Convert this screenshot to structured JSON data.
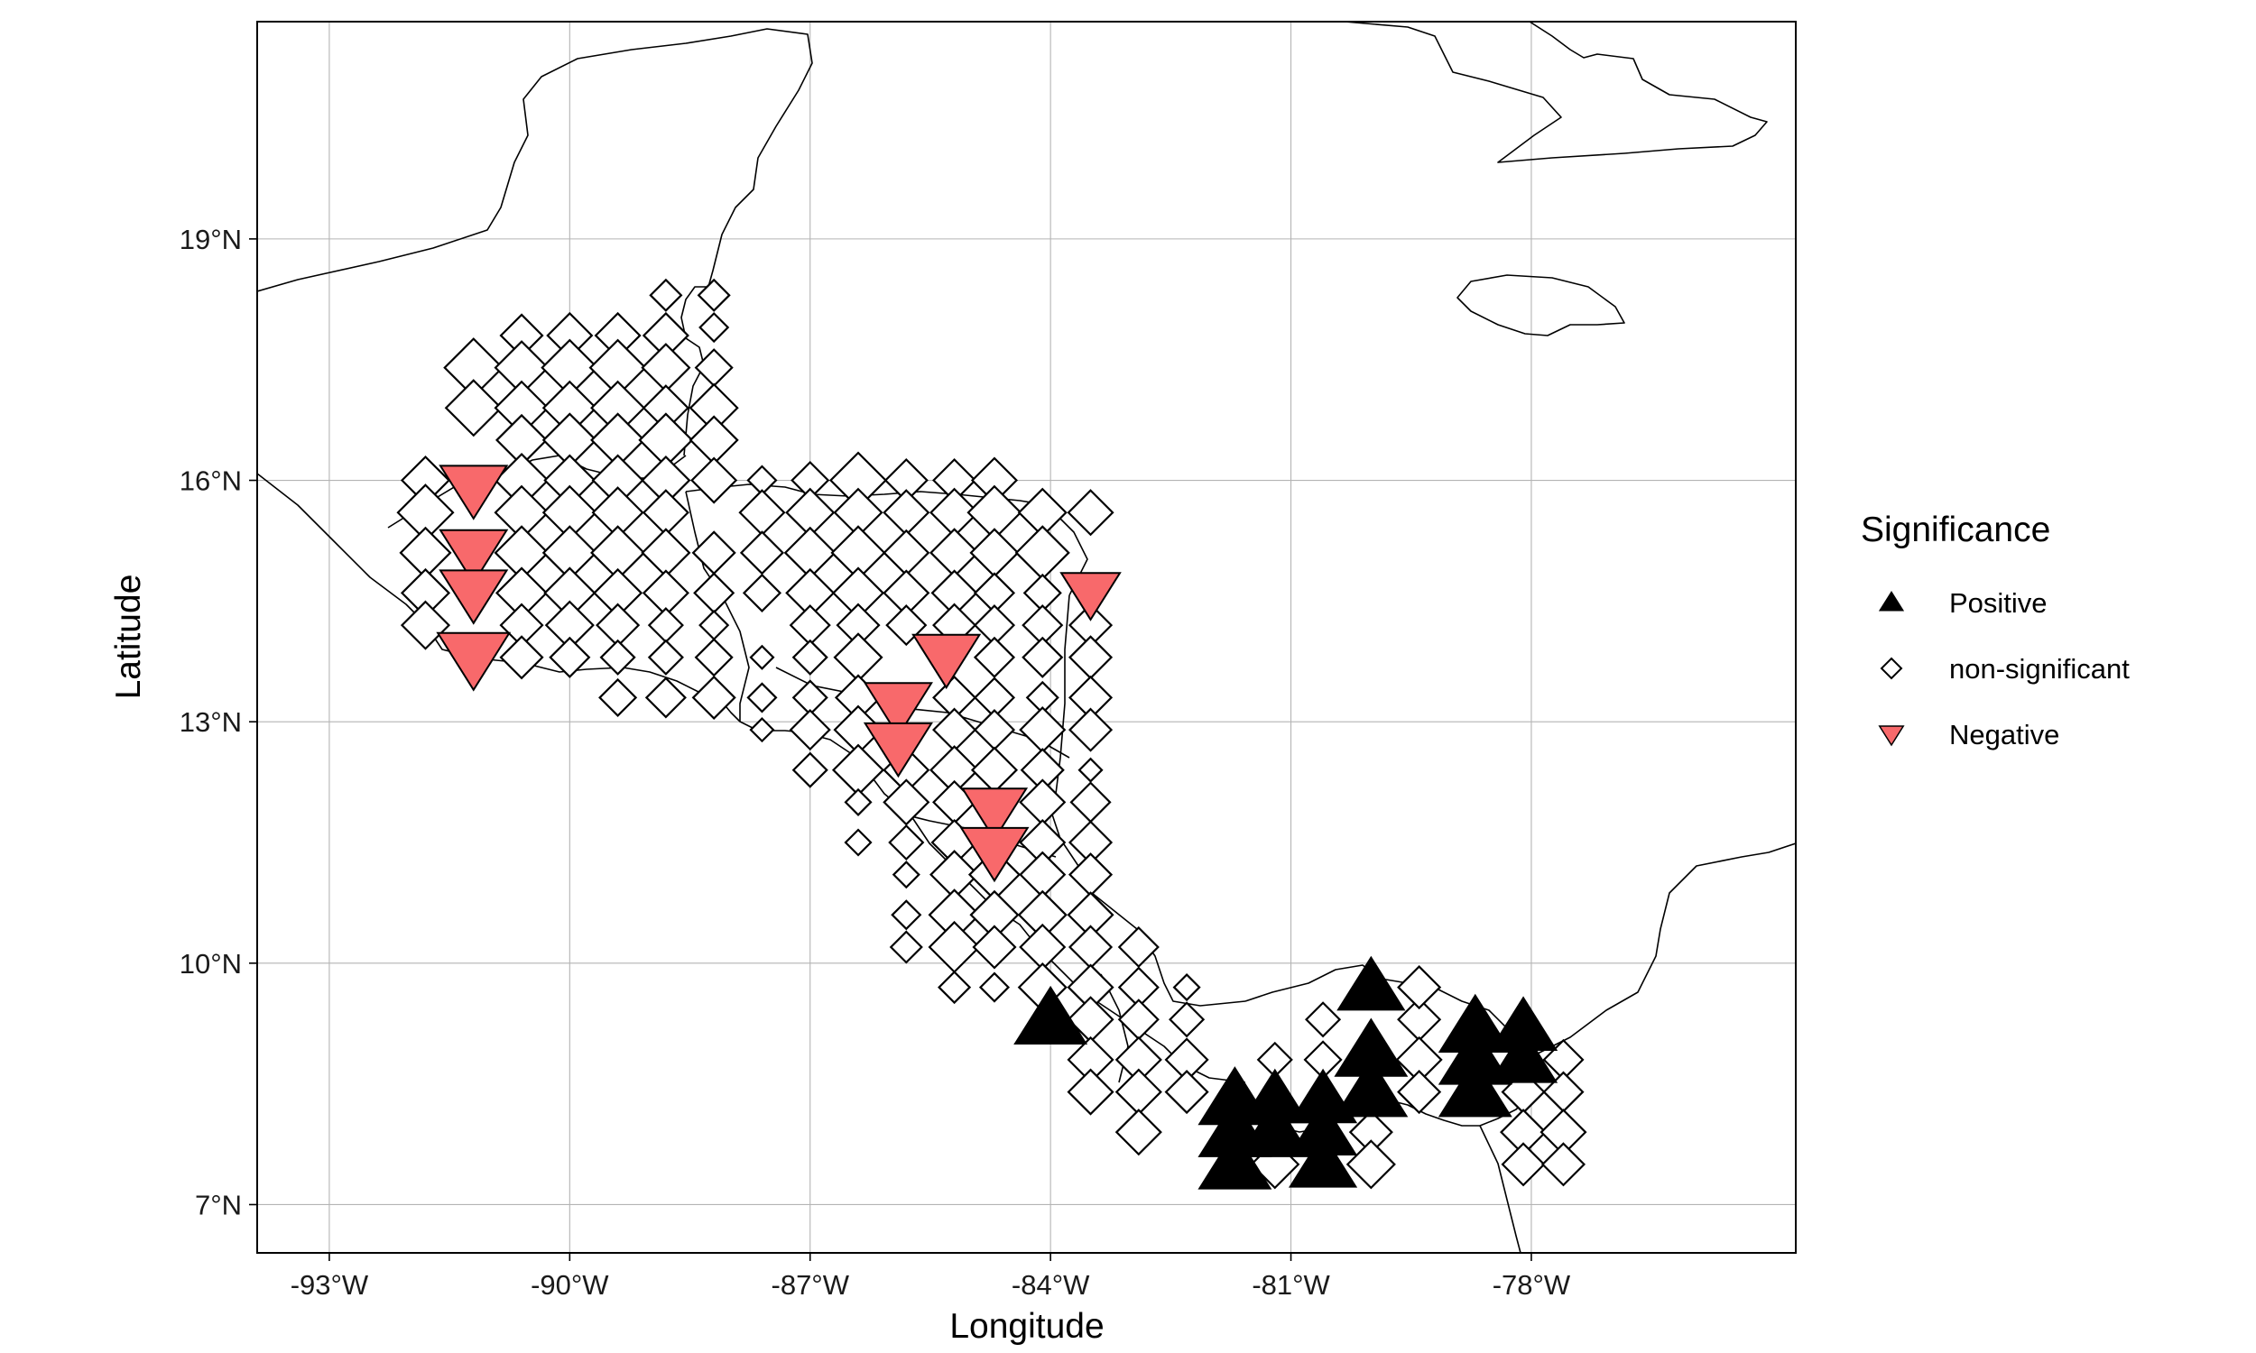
{
  "chart_data": {
    "type": "scatter",
    "title": "",
    "xlabel": "Longitude",
    "ylabel": "Latitude",
    "xlim": [
      -93.9,
      -74.7
    ],
    "ylim": [
      6.4,
      21.7
    ],
    "x_ticks": [
      -93,
      -90,
      -87,
      -84,
      -81,
      -78
    ],
    "x_tick_labels": [
      "-93°W",
      "-90°W",
      "-87°W",
      "-84°W",
      "-81°W",
      "-78°W"
    ],
    "y_ticks": [
      7,
      10,
      13,
      16,
      19
    ],
    "y_tick_labels": [
      "7°N",
      "10°N",
      "13°N",
      "16°N",
      "19°N"
    ],
    "grid": true,
    "legend": {
      "title": "Significance",
      "position": "right",
      "entries": [
        {
          "key": "positive",
          "label": "Positive",
          "shape": "triangle-up",
          "color": "#000000"
        },
        {
          "key": "ns",
          "label": "non-significant",
          "shape": "diamond-open",
          "color": "#000000"
        },
        {
          "key": "negative",
          "label": "Negative",
          "shape": "triangle-down",
          "color": "#F8696B"
        }
      ]
    },
    "colors": {
      "positive": "#000000",
      "negative": "#F8696B",
      "ns_stroke": "#000000"
    },
    "series": [
      {
        "key": "positive",
        "points": [
          [
            -84.0,
            9.3,
            1.0
          ],
          [
            -80.0,
            9.7,
            0.9
          ],
          [
            -80.0,
            8.9,
            1.0
          ],
          [
            -80.0,
            8.4,
            1.0
          ],
          [
            -81.7,
            8.3,
            1.0
          ],
          [
            -81.2,
            8.3,
            0.9
          ],
          [
            -80.6,
            8.3,
            0.9
          ],
          [
            -81.7,
            7.9,
            1.0
          ],
          [
            -81.2,
            7.9,
            1.0
          ],
          [
            -80.6,
            7.9,
            0.9
          ],
          [
            -81.7,
            7.5,
            1.0
          ],
          [
            -80.6,
            7.5,
            0.9
          ],
          [
            -78.7,
            9.2,
            1.0
          ],
          [
            -78.1,
            9.2,
            0.9
          ],
          [
            -78.7,
            8.8,
            1.0
          ],
          [
            -78.1,
            8.8,
            0.9
          ],
          [
            -78.7,
            8.4,
            1.0
          ]
        ]
      },
      {
        "key": "negative",
        "points": [
          [
            -91.2,
            15.9,
            0.9
          ],
          [
            -91.2,
            15.1,
            0.9
          ],
          [
            -91.2,
            14.6,
            0.9
          ],
          [
            -91.2,
            13.8,
            1.0
          ],
          [
            -85.3,
            13.8,
            0.9
          ],
          [
            -85.9,
            13.2,
            0.9
          ],
          [
            -85.9,
            12.7,
            0.9
          ],
          [
            -84.7,
            11.9,
            0.85
          ],
          [
            -84.7,
            11.4,
            0.9
          ],
          [
            -83.5,
            14.6,
            0.75
          ]
        ]
      },
      {
        "key": "ns",
        "points": [
          [
            -88.8,
            18.3,
            0.3
          ],
          [
            -88.2,
            18.3,
            0.3
          ],
          [
            -88.2,
            17.9,
            0.25
          ],
          [
            -90.6,
            17.8,
            0.5
          ],
          [
            -90.0,
            17.8,
            0.55
          ],
          [
            -89.4,
            17.8,
            0.55
          ],
          [
            -88.8,
            17.8,
            0.55
          ],
          [
            -91.2,
            17.4,
            0.8
          ],
          [
            -90.6,
            17.4,
            0.7
          ],
          [
            -90.0,
            17.4,
            0.75
          ],
          [
            -89.4,
            17.4,
            0.75
          ],
          [
            -88.8,
            17.4,
            0.6
          ],
          [
            -88.2,
            17.4,
            0.4
          ],
          [
            -91.2,
            16.9,
            0.75
          ],
          [
            -90.6,
            16.9,
            0.7
          ],
          [
            -90.0,
            16.9,
            0.7
          ],
          [
            -89.4,
            16.9,
            0.7
          ],
          [
            -88.8,
            16.9,
            0.55
          ],
          [
            -88.2,
            16.9,
            0.6
          ],
          [
            -90.6,
            16.5,
            0.65
          ],
          [
            -90.0,
            16.5,
            0.7
          ],
          [
            -89.4,
            16.5,
            0.7
          ],
          [
            -88.8,
            16.5,
            0.7
          ],
          [
            -88.2,
            16.5,
            0.6
          ],
          [
            -91.8,
            16.0,
            0.6
          ],
          [
            -90.6,
            16.0,
            0.7
          ],
          [
            -90.0,
            16.0,
            0.65
          ],
          [
            -89.4,
            16.0,
            0.65
          ],
          [
            -88.8,
            16.0,
            0.6
          ],
          [
            -88.2,
            16.0,
            0.55
          ],
          [
            -87.6,
            16.0,
            0.25
          ],
          [
            -87.0,
            16.0,
            0.4
          ],
          [
            -86.4,
            16.0,
            0.75
          ],
          [
            -85.8,
            16.0,
            0.5
          ],
          [
            -85.2,
            16.0,
            0.5
          ],
          [
            -84.7,
            16.0,
            0.55
          ],
          [
            -91.8,
            15.6,
            0.75
          ],
          [
            -90.6,
            15.6,
            0.7
          ],
          [
            -90.0,
            15.6,
            0.7
          ],
          [
            -89.4,
            15.6,
            0.65
          ],
          [
            -88.8,
            15.6,
            0.55
          ],
          [
            -87.6,
            15.6,
            0.55
          ],
          [
            -87.0,
            15.6,
            0.6
          ],
          [
            -86.4,
            15.6,
            0.6
          ],
          [
            -85.8,
            15.6,
            0.55
          ],
          [
            -85.2,
            15.6,
            0.6
          ],
          [
            -84.7,
            15.6,
            0.7
          ],
          [
            -84.1,
            15.6,
            0.6
          ],
          [
            -83.5,
            15.6,
            0.55
          ],
          [
            -91.8,
            15.1,
            0.65
          ],
          [
            -90.6,
            15.1,
            0.7
          ],
          [
            -90.0,
            15.1,
            0.7
          ],
          [
            -89.4,
            15.1,
            0.7
          ],
          [
            -88.8,
            15.1,
            0.6
          ],
          [
            -88.2,
            15.1,
            0.5
          ],
          [
            -87.6,
            15.1,
            0.5
          ],
          [
            -87.0,
            15.1,
            0.65
          ],
          [
            -86.4,
            15.1,
            0.7
          ],
          [
            -85.8,
            15.1,
            0.55
          ],
          [
            -85.2,
            15.1,
            0.6
          ],
          [
            -84.7,
            15.1,
            0.6
          ],
          [
            -84.1,
            15.1,
            0.7
          ],
          [
            -91.8,
            14.6,
            0.6
          ],
          [
            -90.6,
            14.6,
            0.65
          ],
          [
            -90.0,
            14.6,
            0.65
          ],
          [
            -89.4,
            14.6,
            0.6
          ],
          [
            -88.8,
            14.6,
            0.55
          ],
          [
            -88.2,
            14.6,
            0.45
          ],
          [
            -87.6,
            14.6,
            0.4
          ],
          [
            -87.0,
            14.6,
            0.6
          ],
          [
            -86.4,
            14.6,
            0.65
          ],
          [
            -85.8,
            14.6,
            0.55
          ],
          [
            -85.2,
            14.6,
            0.55
          ],
          [
            -84.7,
            14.6,
            0.45
          ],
          [
            -84.1,
            14.6,
            0.4
          ],
          [
            -91.8,
            14.2,
            0.6
          ],
          [
            -90.6,
            14.2,
            0.5
          ],
          [
            -90.0,
            14.2,
            0.6
          ],
          [
            -89.4,
            14.2,
            0.5
          ],
          [
            -88.8,
            14.2,
            0.35
          ],
          [
            -88.2,
            14.2,
            0.25
          ],
          [
            -87.0,
            14.2,
            0.45
          ],
          [
            -86.4,
            14.2,
            0.5
          ],
          [
            -85.8,
            14.2,
            0.45
          ],
          [
            -85.2,
            14.2,
            0.5
          ],
          [
            -84.7,
            14.2,
            0.45
          ],
          [
            -84.1,
            14.2,
            0.45
          ],
          [
            -83.5,
            14.2,
            0.5
          ],
          [
            -90.6,
            13.8,
            0.5
          ],
          [
            -90.0,
            13.8,
            0.45
          ],
          [
            -89.4,
            13.8,
            0.35
          ],
          [
            -88.8,
            13.8,
            0.35
          ],
          [
            -88.2,
            13.8,
            0.4
          ],
          [
            -87.6,
            13.8,
            0.15
          ],
          [
            -87.0,
            13.8,
            0.35
          ],
          [
            -86.4,
            13.8,
            0.6
          ],
          [
            -84.7,
            13.8,
            0.45
          ],
          [
            -84.1,
            13.8,
            0.45
          ],
          [
            -83.5,
            13.8,
            0.5
          ],
          [
            -89.4,
            13.3,
            0.4
          ],
          [
            -88.8,
            13.3,
            0.45
          ],
          [
            -88.2,
            13.3,
            0.5
          ],
          [
            -87.6,
            13.3,
            0.25
          ],
          [
            -87.0,
            13.3,
            0.35
          ],
          [
            -86.4,
            13.3,
            0.55
          ],
          [
            -85.2,
            13.3,
            0.5
          ],
          [
            -84.7,
            13.3,
            0.45
          ],
          [
            -84.1,
            13.3,
            0.3
          ],
          [
            -83.5,
            13.3,
            0.5
          ],
          [
            -87.6,
            12.9,
            0.15
          ],
          [
            -87.0,
            12.9,
            0.45
          ],
          [
            -86.4,
            12.9,
            0.6
          ],
          [
            -85.2,
            12.9,
            0.5
          ],
          [
            -84.7,
            12.9,
            0.45
          ],
          [
            -84.1,
            12.9,
            0.55
          ],
          [
            -83.5,
            12.9,
            0.5
          ],
          [
            -87.0,
            12.4,
            0.35
          ],
          [
            -86.4,
            12.4,
            0.65
          ],
          [
            -85.8,
            12.4,
            0.55
          ],
          [
            -85.2,
            12.4,
            0.6
          ],
          [
            -84.7,
            12.4,
            0.55
          ],
          [
            -84.1,
            12.4,
            0.5
          ],
          [
            -83.5,
            12.4,
            0.15
          ],
          [
            -86.4,
            12.0,
            0.2
          ],
          [
            -85.8,
            12.0,
            0.55
          ],
          [
            -85.2,
            12.0,
            0.5
          ],
          [
            -84.1,
            12.0,
            0.55
          ],
          [
            -83.5,
            12.0,
            0.45
          ],
          [
            -86.4,
            11.5,
            0.2
          ],
          [
            -85.8,
            11.5,
            0.35
          ],
          [
            -85.2,
            11.5,
            0.55
          ],
          [
            -84.1,
            11.5,
            0.55
          ],
          [
            -83.5,
            11.5,
            0.5
          ],
          [
            -85.8,
            11.1,
            0.2
          ],
          [
            -85.2,
            11.1,
            0.6
          ],
          [
            -84.7,
            11.1,
            0.65
          ],
          [
            -84.1,
            11.1,
            0.55
          ],
          [
            -83.5,
            11.1,
            0.5
          ],
          [
            -85.8,
            10.6,
            0.25
          ],
          [
            -85.2,
            10.6,
            0.65
          ],
          [
            -84.7,
            10.6,
            0.6
          ],
          [
            -84.1,
            10.6,
            0.6
          ],
          [
            -83.5,
            10.6,
            0.55
          ],
          [
            -85.8,
            10.2,
            0.3
          ],
          [
            -85.2,
            10.2,
            0.65
          ],
          [
            -84.7,
            10.2,
            0.5
          ],
          [
            -84.1,
            10.2,
            0.55
          ],
          [
            -83.5,
            10.2,
            0.5
          ],
          [
            -82.9,
            10.2,
            0.45
          ],
          [
            -85.2,
            9.7,
            0.3
          ],
          [
            -84.7,
            9.7,
            0.25
          ],
          [
            -84.1,
            9.7,
            0.6
          ],
          [
            -83.5,
            9.7,
            0.55
          ],
          [
            -82.9,
            9.7,
            0.45
          ],
          [
            -82.3,
            9.7,
            0.2
          ],
          [
            -83.5,
            9.3,
            0.55
          ],
          [
            -82.9,
            9.3,
            0.45
          ],
          [
            -82.3,
            9.3,
            0.35
          ],
          [
            -80.6,
            9.3,
            0.35
          ],
          [
            -79.4,
            9.3,
            0.5
          ],
          [
            -79.4,
            9.7,
            0.5
          ],
          [
            -83.5,
            8.8,
            0.55
          ],
          [
            -82.9,
            8.8,
            0.55
          ],
          [
            -82.3,
            8.8,
            0.5
          ],
          [
            -81.2,
            8.8,
            0.35
          ],
          [
            -80.6,
            8.8,
            0.4
          ],
          [
            -79.4,
            8.8,
            0.55
          ],
          [
            -77.6,
            8.8,
            0.45
          ],
          [
            -83.5,
            8.4,
            0.55
          ],
          [
            -82.9,
            8.4,
            0.55
          ],
          [
            -82.3,
            8.4,
            0.5
          ],
          [
            -79.4,
            8.4,
            0.5
          ],
          [
            -78.1,
            8.4,
            0.5
          ],
          [
            -77.6,
            8.4,
            0.45
          ],
          [
            -82.9,
            7.9,
            0.55
          ],
          [
            -80.0,
            7.9,
            0.5
          ],
          [
            -78.1,
            7.9,
            0.55
          ],
          [
            -77.6,
            7.9,
            0.55
          ],
          [
            -81.2,
            7.5,
            0.6
          ],
          [
            -80.0,
            7.5,
            0.6
          ],
          [
            -78.1,
            7.5,
            0.5
          ],
          [
            -77.6,
            7.5,
            0.5
          ]
        ]
      }
    ]
  }
}
